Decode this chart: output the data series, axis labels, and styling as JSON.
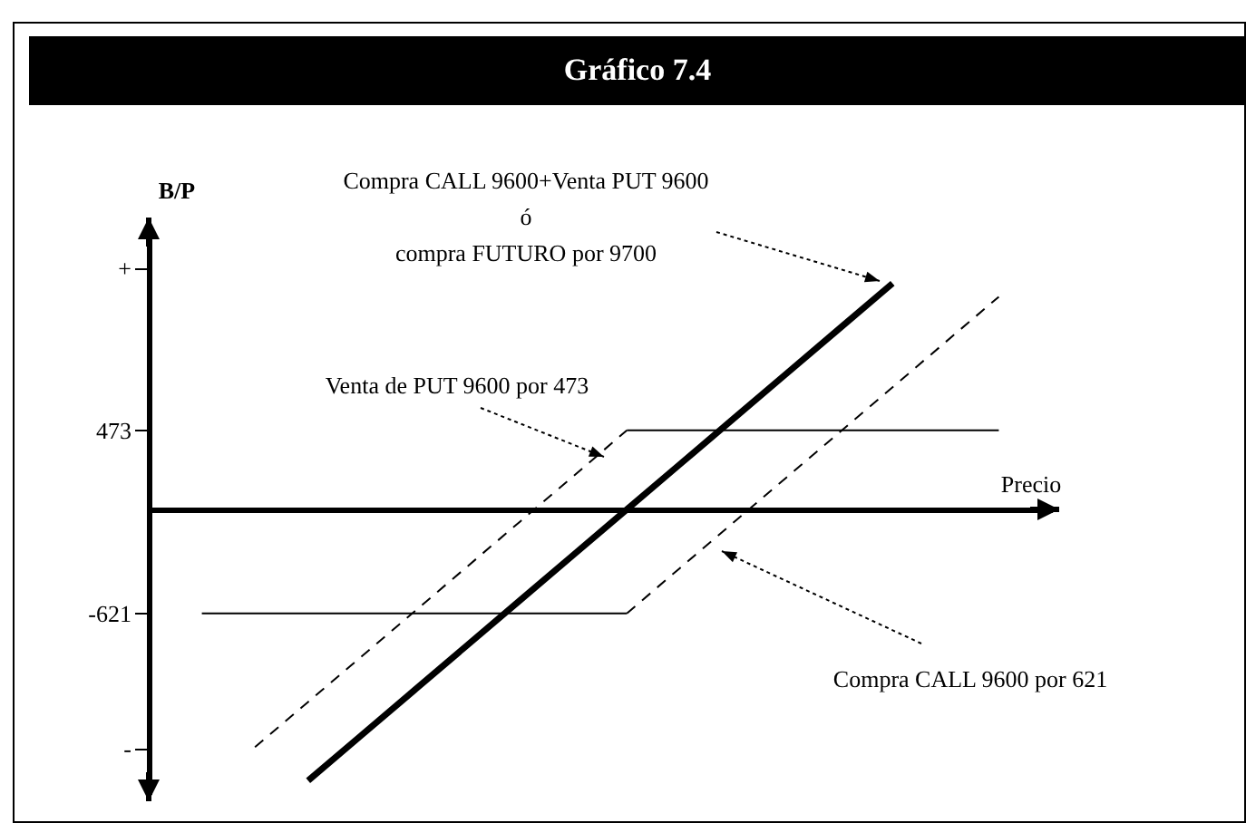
{
  "chart_data": {
    "type": "line",
    "title": "Gráfico 7.4",
    "xlabel": "Precio",
    "ylabel": "B/P",
    "categories": [
      null,
      null,
      null,
      null,
      null,
      null,
      null,
      null,
      null,
      null,
      null,
      null,
      null,
      null,
      null,
      null
    ],
    "ylim": [
      -1700,
      1700
    ],
    "yticks": [
      {
        "value": 1440,
        "label": "+"
      },
      473,
      -621,
      {
        "value": -1430,
        "label": "-"
      }
    ],
    "tick_labels": "y",
    "grid": false,
    "marker": "none",
    "series": [
      {
        "color": "#000000",
        "line_style": "solid",
        "values": [
          null,
          null,
          -1620,
          -1350,
          -1080,
          -810,
          -540,
          -270,
          0,
          270,
          540,
          810,
          1080,
          1350,
          null,
          null
        ]
      },
      {
        "color": "#000000",
        "line_style": "solid",
        "values": [
          null,
          null,
          null,
          null,
          null,
          null,
          null,
          null,
          473,
          473,
          473,
          473,
          473,
          473,
          473,
          473
        ]
      },
      {
        "color": "#000000",
        "line_style": "dashed",
        "values": [
          null,
          -1420,
          -1150,
          -880,
          -610,
          -340,
          -70,
          200,
          473,
          null,
          null,
          null,
          null,
          null,
          null,
          null
        ]
      },
      {
        "color": "#000000",
        "line_style": "solid",
        "values": [
          -621,
          -621,
          -621,
          -621,
          -621,
          -621,
          -621,
          -621,
          -621,
          null,
          null,
          null,
          null,
          null,
          null,
          null
        ]
      },
      {
        "color": "#000000",
        "line_style": "dashed",
        "values": [
          null,
          null,
          null,
          null,
          null,
          null,
          null,
          null,
          -621,
          -350,
          -80,
          190,
          460,
          730,
          1000,
          1270
        ]
      }
    ],
    "annotations": [
      "Compra CALL 9600+Venta PUT 9600\nó\ncompra FUTURO por 9700",
      "Venta de PUT 9600 por 473",
      "Compra CALL 9600 por 621"
    ]
  }
}
